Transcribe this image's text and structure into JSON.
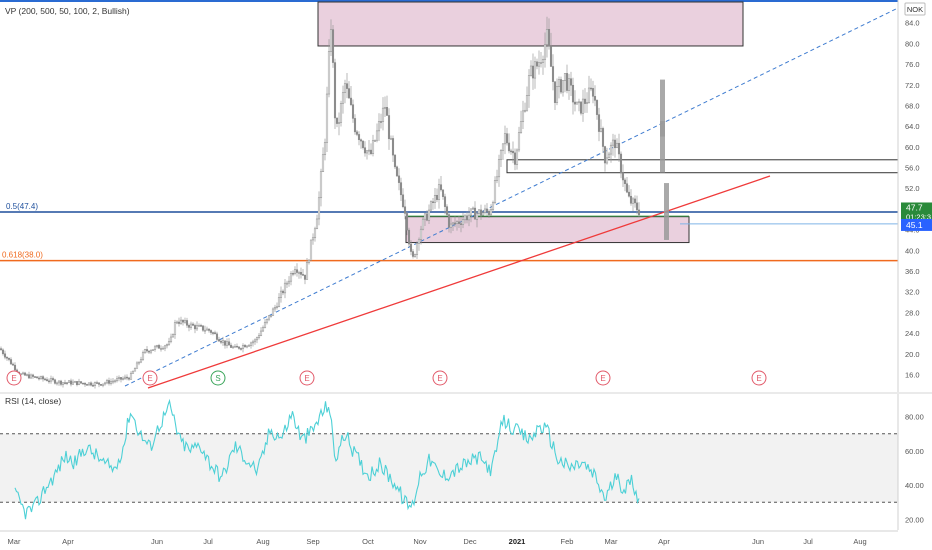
{
  "colors": {
    "candle": "#a8a8a8",
    "rsi": "#4dd0d6",
    "fib_half": "#1e4f9c",
    "fib_618": "#f06a1e",
    "trendline": "#ef3a3a",
    "dashed_line": "#3f7cd0",
    "zone_fill": "#ead0de",
    "price_badge": "#2a8a3a",
    "level_badge": "#2962ff",
    "earnings": "#e25a6a",
    "split": "#3aa55a"
  },
  "chart_data": [
    {
      "type": "candlestick",
      "indicator_label": "VP (200, 500, 50, 100, 2, Bullish)",
      "currency": "NOK",
      "ylim": [
        13,
        88
      ],
      "y_ticks": [
        "16.0",
        "20.0",
        "24.0",
        "28.0",
        "32.0",
        "36.0",
        "40.0",
        "44.0",
        "48.0",
        "52.0",
        "56.0",
        "60.0",
        "64.0",
        "68.0",
        "72.0",
        "76.0",
        "80.0",
        "84.0"
      ],
      "x_ticks": [
        "Mar",
        "Apr",
        "Jun",
        "Jul",
        "Aug",
        "Sep",
        "Oct",
        "Nov",
        "Dec",
        "2021",
        "Feb",
        "Mar",
        "Apr",
        "Jun",
        "Jul",
        "Aug"
      ],
      "current_price": "47.7",
      "countdown": "01:23:3",
      "level_price": "45.1",
      "fib_levels": [
        {
          "label": "0.5(47.4)",
          "value": 47.4
        },
        {
          "label": "0.618(38.0)",
          "value": 38.0
        }
      ],
      "zones": [
        {
          "name": "top-zone",
          "low": 79.5,
          "high": 88.0
        },
        {
          "name": "resistance-zone",
          "low": 55.0,
          "high": 57.5
        },
        {
          "name": "support-zone",
          "low": 41.5,
          "high": 46.5
        }
      ],
      "closes": [
        [
          0,
          21.0
        ],
        [
          8,
          19.0
        ],
        [
          20,
          16.0
        ],
        [
          60,
          14.5
        ],
        [
          100,
          14.2
        ],
        [
          130,
          15.5
        ],
        [
          145,
          20.5
        ],
        [
          170,
          22.0
        ],
        [
          176,
          26.5
        ],
        [
          190,
          25.5
        ],
        [
          210,
          24.5
        ],
        [
          225,
          22.0
        ],
        [
          235,
          21.0
        ],
        [
          255,
          22.5
        ],
        [
          275,
          29.0
        ],
        [
          295,
          37.0
        ],
        [
          305,
          35.0
        ],
        [
          318,
          48.0
        ],
        [
          325,
          62.0
        ],
        [
          331,
          84.0
        ],
        [
          336,
          62.0
        ],
        [
          345,
          72.0
        ],
        [
          355,
          64.0
        ],
        [
          370,
          58.0
        ],
        [
          385,
          68.0
        ],
        [
          395,
          55.0
        ],
        [
          405,
          48.0
        ],
        [
          412,
          37.5
        ],
        [
          420,
          44.0
        ],
        [
          430,
          48.0
        ],
        [
          440,
          52.0
        ],
        [
          450,
          44.5
        ],
        [
          470,
          47.0
        ],
        [
          490,
          47.5
        ],
        [
          505,
          62.0
        ],
        [
          515,
          58.0
        ],
        [
          530,
          74.0
        ],
        [
          538,
          76.0
        ],
        [
          547,
          81.0
        ],
        [
          555,
          70.0
        ],
        [
          565,
          73.5
        ],
        [
          578,
          67.0
        ],
        [
          593,
          71.0
        ],
        [
          605,
          58.0
        ],
        [
          615,
          61.0
        ],
        [
          628,
          50.0
        ],
        [
          640,
          47.5
        ]
      ],
      "earnings_markers": [
        "E",
        "E",
        "S",
        "E",
        "E",
        "E",
        "E"
      ],
      "rsi": {
        "label": "RSI (14, close)",
        "ylim": [
          15,
          92
        ],
        "upper_band": 70,
        "lower_band": 30,
        "y_ticks": [
          "20.00",
          "40.00",
          "60.00",
          "80.00"
        ],
        "values": [
          [
            15,
            35
          ],
          [
            25,
            24
          ],
          [
            35,
            27
          ],
          [
            45,
            38
          ],
          [
            55,
            46
          ],
          [
            65,
            57
          ],
          [
            75,
            53
          ],
          [
            85,
            62
          ],
          [
            95,
            58
          ],
          [
            105,
            52
          ],
          [
            115,
            49
          ],
          [
            125,
            66
          ],
          [
            130,
            84
          ],
          [
            140,
            70
          ],
          [
            150,
            62
          ],
          [
            160,
            76
          ],
          [
            170,
            86
          ],
          [
            180,
            66
          ],
          [
            190,
            60
          ],
          [
            200,
            64
          ],
          [
            210,
            53
          ],
          [
            222,
            44
          ],
          [
            235,
            63
          ],
          [
            248,
            54
          ],
          [
            258,
            48
          ],
          [
            270,
            72
          ],
          [
            282,
            68
          ],
          [
            292,
            82
          ],
          [
            302,
            66
          ],
          [
            313,
            72
          ],
          [
            320,
            80
          ],
          [
            329,
            88
          ],
          [
            335,
            55
          ],
          [
            345,
            70
          ],
          [
            355,
            58
          ],
          [
            368,
            46
          ],
          [
            380,
            52
          ],
          [
            395,
            41
          ],
          [
            405,
            30
          ],
          [
            412,
            27
          ],
          [
            420,
            46
          ],
          [
            430,
            55
          ],
          [
            440,
            45
          ],
          [
            450,
            47
          ],
          [
            462,
            51
          ],
          [
            478,
            56
          ],
          [
            492,
            49
          ],
          [
            503,
            78
          ],
          [
            515,
            72
          ],
          [
            530,
            66
          ],
          [
            540,
            75
          ],
          [
            548,
            71
          ],
          [
            558,
            55
          ],
          [
            570,
            50
          ],
          [
            582,
            53
          ],
          [
            595,
            45
          ],
          [
            605,
            32
          ],
          [
            615,
            44
          ],
          [
            625,
            38
          ],
          [
            632,
            43
          ],
          [
            640,
            30
          ]
        ]
      }
    }
  ]
}
